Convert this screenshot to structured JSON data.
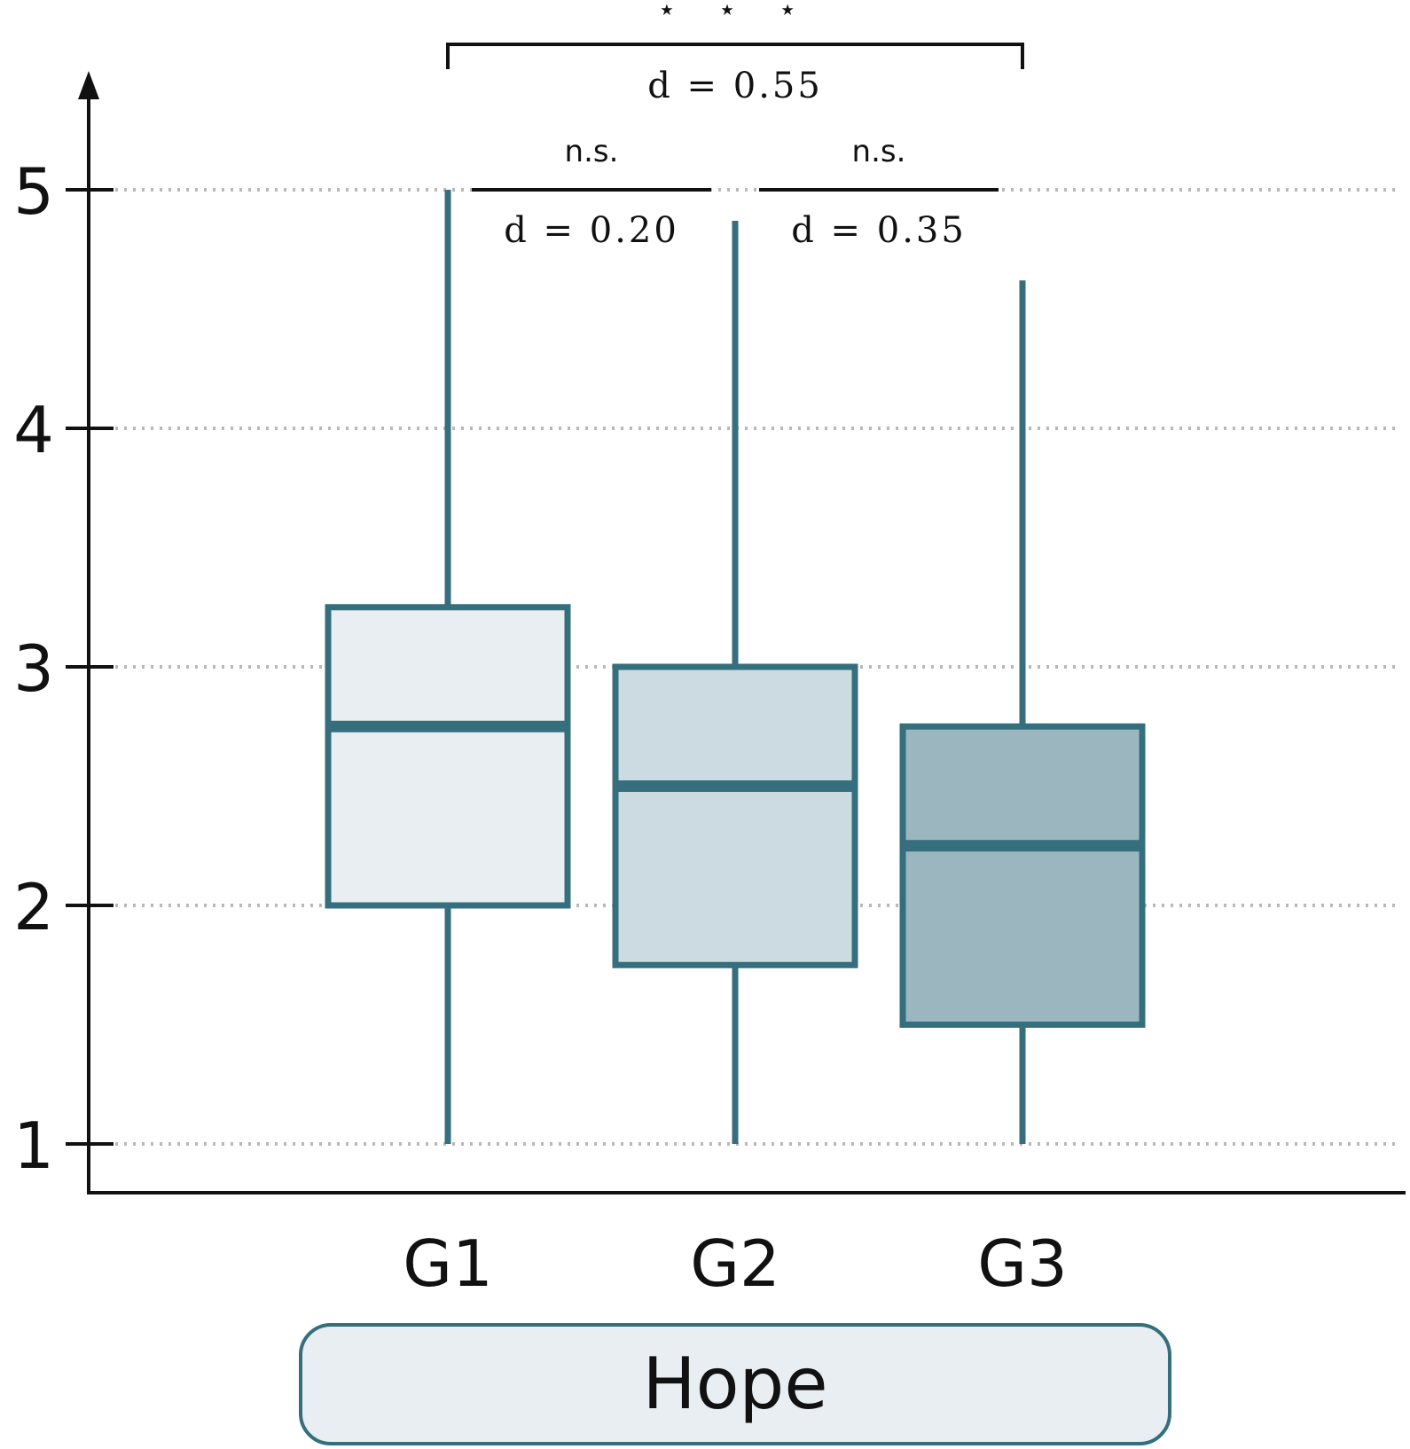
{
  "chart_data": {
    "type": "box",
    "xlabel": "Hope",
    "ylim": [
      0.8,
      5.5
    ],
    "yticks": [
      1,
      2,
      3,
      4,
      5
    ],
    "grid": "horizontal dotted",
    "categories": [
      "G1",
      "G2",
      "G3"
    ],
    "boxes": [
      {
        "name": "G1",
        "whisker_low": 1.0,
        "q1": 2.0,
        "median": 2.75,
        "q3": 3.25,
        "whisker_high": 5.0
      },
      {
        "name": "G2",
        "whisker_low": 1.0,
        "q1": 1.75,
        "median": 2.5,
        "q3": 3.0,
        "whisker_high": 4.87
      },
      {
        "name": "G3",
        "whisker_low": 1.0,
        "q1": 1.5,
        "median": 2.25,
        "q3": 2.75,
        "whisker_high": 4.62
      }
    ],
    "comparisons": [
      {
        "pair": [
          "G1",
          "G2"
        ],
        "significance": "n.s.",
        "effect": "d = 0.20"
      },
      {
        "pair": [
          "G2",
          "G3"
        ],
        "significance": "n.s.",
        "effect": "d = 0.35"
      },
      {
        "pair": [
          "G1",
          "G3"
        ],
        "significance": "⋆ ⋆ ⋆",
        "effect": "d = 0.55"
      }
    ],
    "colors": {
      "stroke": "#356e7c",
      "fills": [
        "#e8eef1",
        "#cbdbe1",
        "#9cb6bf"
      ],
      "label_box": "#e8eef1"
    }
  }
}
